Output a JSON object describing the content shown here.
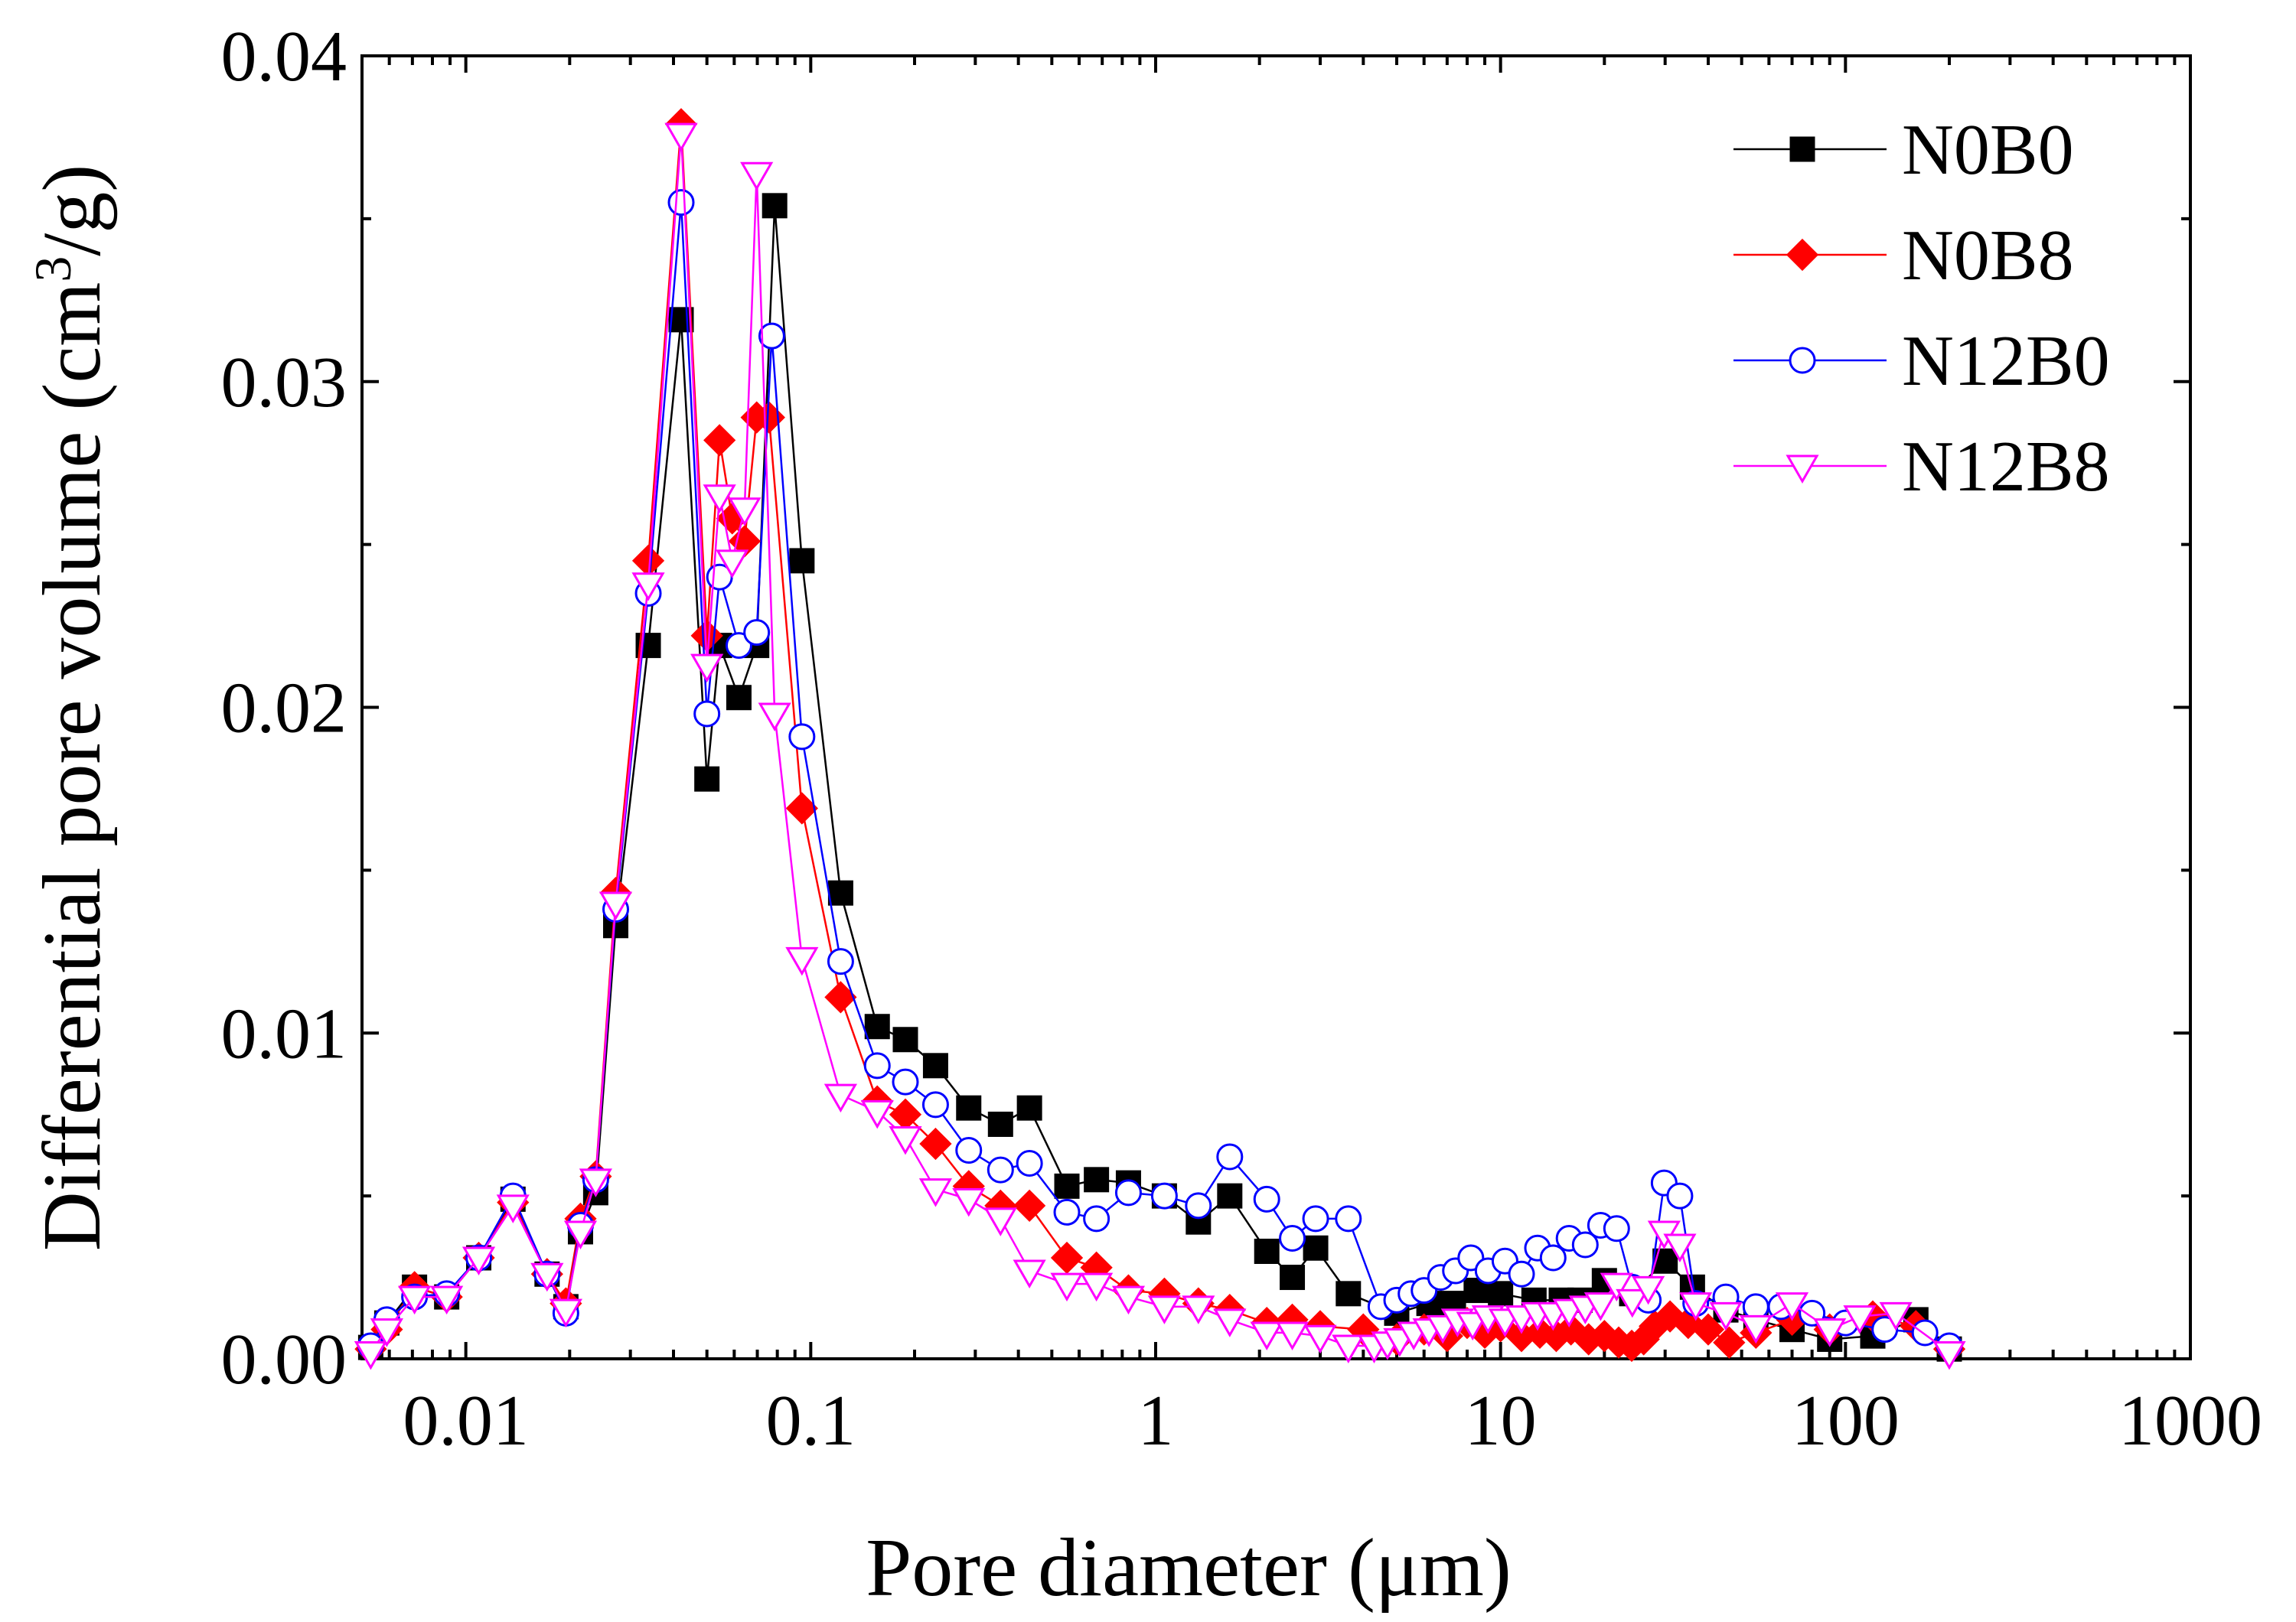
{
  "chart_data": {
    "type": "line",
    "title": "",
    "xlabel": "Pore diameter  (μm)",
    "ylabel_main": "Differential pore volume  (cm",
    "ylabel_sup": "3",
    "ylabel_tail": "/g)",
    "xscale": "log",
    "xlim": [
      0.005,
      1000
    ],
    "ylim": [
      0,
      0.04
    ],
    "x_ticks": [
      0.01,
      0.1,
      1,
      10,
      100,
      1000
    ],
    "x_tick_labels": [
      "0.01",
      "0.1",
      "1",
      "10",
      "100",
      "1000"
    ],
    "y_ticks": [
      0,
      0.01,
      0.02,
      0.03,
      0.04
    ],
    "y_tick_labels": [
      "0.00",
      "0.01",
      "0.02",
      "0.03",
      "0.04"
    ],
    "legend_position": "top-right",
    "series": [
      {
        "name": "N0B0",
        "color": "#000000",
        "marker": "square",
        "filled": true,
        "x": [
          0.0053,
          0.0059,
          0.0071,
          0.0088,
          0.0109,
          0.0137,
          0.0172,
          0.0195,
          0.0215,
          0.0238,
          0.0272,
          0.0338,
          0.0421,
          0.05,
          0.0544,
          0.0619,
          0.0697,
          0.0786,
          0.0943,
          0.1221,
          0.1559,
          0.1881,
          0.2301,
          0.2871,
          0.355,
          0.4307,
          0.5529,
          0.6735,
          0.8339,
          1.06,
          1.33,
          1.64,
          2.1,
          2.49,
          2.91,
          3.62,
          5,
          6.2,
          7.3,
          8.5,
          10,
          12.5,
          15,
          17,
          20,
          24,
          30,
          36,
          45,
          55,
          70,
          90,
          120,
          160,
          200
        ],
        "values": [
          0.00035,
          0.0011,
          0.0022,
          0.0019,
          0.0031,
          0.0049,
          0.0026,
          0.0016,
          0.0039,
          0.0051,
          0.0133,
          0.0219,
          0.0319,
          0.0178,
          0.0219,
          0.0203,
          0.0219,
          0.0354,
          0.0245,
          0.0143,
          0.0102,
          0.0098,
          0.009,
          0.0077,
          0.0072,
          0.0077,
          0.0053,
          0.0055,
          0.0054,
          0.005,
          0.0042,
          0.005,
          0.0033,
          0.0025,
          0.0034,
          0.002,
          0.0014,
          0.0017,
          0.0017,
          0.0021,
          0.002,
          0.0018,
          0.0018,
          0.0018,
          0.0024,
          0.002,
          0.003,
          0.0022,
          0.0015,
          0.0012,
          0.0009,
          0.0006,
          0.0007,
          0.0012,
          0.0003
        ]
      },
      {
        "name": "N0B8",
        "color": "#ff0000",
        "marker": "diamond",
        "filled": true,
        "x": [
          0.0053,
          0.0059,
          0.0071,
          0.0088,
          0.0109,
          0.0137,
          0.0172,
          0.0195,
          0.0215,
          0.0238,
          0.0272,
          0.0338,
          0.0421,
          0.05,
          0.0544,
          0.0592,
          0.0643,
          0.0697,
          0.0757,
          0.0943,
          0.1221,
          0.1559,
          0.1881,
          0.2301,
          0.2871,
          0.355,
          0.4307,
          0.5529,
          0.6735,
          0.8339,
          1.06,
          1.33,
          1.64,
          2.1,
          2.49,
          3.0,
          4.0,
          5.0,
          6.0,
          7.0,
          8.0,
          9.0,
          10,
          11.5,
          13,
          14.5,
          16,
          18,
          20,
          22,
          24,
          26,
          28,
          31,
          35,
          40,
          46,
          55,
          70,
          90,
          120,
          160,
          200
        ],
        "values": [
          0.0003,
          0.0009,
          0.0022,
          0.0019,
          0.0031,
          0.0048,
          0.0026,
          0.0017,
          0.0043,
          0.0056,
          0.0143,
          0.0245,
          0.0379,
          0.0222,
          0.0282,
          0.0258,
          0.0251,
          0.0289,
          0.0289,
          0.0169,
          0.0111,
          0.0079,
          0.0075,
          0.0066,
          0.0053,
          0.0047,
          0.0047,
          0.0031,
          0.0028,
          0.0021,
          0.002,
          0.0017,
          0.0015,
          0.0011,
          0.0012,
          0.001,
          0.0009,
          0.0006,
          0.0009,
          0.0007,
          0.0011,
          0.0008,
          0.001,
          0.0007,
          0.0008,
          0.0007,
          0.0009,
          0.0006,
          0.0007,
          0.0005,
          0.0004,
          0.0006,
          0.001,
          0.0013,
          0.0011,
          0.0009,
          0.0005,
          0.0008,
          0.0012,
          0.0009,
          0.0013,
          0.001,
          0.0003
        ]
      },
      {
        "name": "N12B0",
        "color": "#0000ff",
        "marker": "circle",
        "filled": false,
        "x": [
          0.0053,
          0.0059,
          0.0071,
          0.0088,
          0.0109,
          0.0137,
          0.0172,
          0.0195,
          0.0215,
          0.0238,
          0.0272,
          0.0338,
          0.0421,
          0.05,
          0.0544,
          0.0619,
          0.0697,
          0.0771,
          0.0943,
          0.1221,
          0.1559,
          0.1881,
          0.2301,
          0.2871,
          0.355,
          0.4307,
          0.5529,
          0.6735,
          0.8339,
          1.06,
          1.33,
          1.64,
          2.1,
          2.49,
          2.91,
          3.62,
          4.5,
          5.0,
          5.5,
          6.0,
          6.7,
          7.4,
          8.2,
          9.2,
          10.3,
          11.5,
          12.8,
          14.2,
          15.8,
          17.6,
          19.5,
          21.7,
          24.1,
          26.8,
          29.8,
          33.1,
          36.8,
          45,
          55,
          65,
          80,
          100,
          130,
          170,
          200
        ],
        "values": [
          0.0004,
          0.0012,
          0.0019,
          0.002,
          0.0031,
          0.005,
          0.0026,
          0.0014,
          0.0041,
          0.0055,
          0.0138,
          0.0235,
          0.0355,
          0.0198,
          0.024,
          0.0219,
          0.0223,
          0.0314,
          0.0191,
          0.0122,
          0.009,
          0.0085,
          0.0078,
          0.0064,
          0.0058,
          0.006,
          0.0045,
          0.0043,
          0.0051,
          0.005,
          0.0047,
          0.0062,
          0.0049,
          0.0037,
          0.0043,
          0.0043,
          0.0016,
          0.0018,
          0.002,
          0.0021,
          0.0025,
          0.0027,
          0.0031,
          0.0027,
          0.003,
          0.0026,
          0.0034,
          0.0031,
          0.0037,
          0.0035,
          0.0041,
          0.004,
          0.0022,
          0.0018,
          0.0054,
          0.005,
          0.0017,
          0.0019,
          0.0016,
          0.0016,
          0.0014,
          0.0011,
          0.0009,
          0.0008,
          0.0004
        ]
      },
      {
        "name": "N12B8",
        "color": "#ff00ff",
        "marker": "triangle-down",
        "filled": false,
        "x": [
          0.0053,
          0.0059,
          0.0071,
          0.0088,
          0.0109,
          0.0137,
          0.0172,
          0.0195,
          0.0215,
          0.0238,
          0.0272,
          0.0338,
          0.0421,
          0.05,
          0.0544,
          0.0592,
          0.0643,
          0.0697,
          0.0786,
          0.0943,
          0.1221,
          0.1559,
          0.1881,
          0.2301,
          0.2871,
          0.355,
          0.4307,
          0.5529,
          0.6735,
          0.8339,
          1.06,
          1.33,
          1.64,
          2.1,
          2.49,
          3.0,
          3.62,
          4.3,
          4.7,
          5.1,
          5.6,
          6.2,
          6.8,
          7.5,
          8.3,
          9.2,
          10.3,
          11.5,
          12.8,
          14.2,
          15.8,
          17.6,
          19.5,
          21.7,
          24.1,
          26.8,
          29.8,
          33.1,
          36.8,
          45,
          55,
          70,
          90,
          110,
          140,
          200
        ],
        "values": [
          0.0002,
          0.0009,
          0.0019,
          0.0019,
          0.0031,
          0.0047,
          0.0026,
          0.0015,
          0.0039,
          0.0055,
          0.014,
          0.0238,
          0.0376,
          0.0213,
          0.0265,
          0.0245,
          0.0261,
          0.0364,
          0.0198,
          0.0123,
          0.0081,
          0.0076,
          0.0068,
          0.0052,
          0.0049,
          0.0043,
          0.0027,
          0.0023,
          0.0023,
          0.0019,
          0.0016,
          0.0016,
          0.0012,
          0.0008,
          0.0008,
          0.0007,
          0.0004,
          0.0004,
          0.0005,
          0.0006,
          0.0008,
          0.0009,
          0.001,
          0.0012,
          0.0011,
          0.0013,
          0.0012,
          0.0013,
          0.0014,
          0.0014,
          0.0015,
          0.0016,
          0.0017,
          0.0023,
          0.0018,
          0.0022,
          0.0039,
          0.0035,
          0.0017,
          0.0014,
          0.001,
          0.0017,
          0.0009,
          0.0013,
          0.0014,
          0.0002
        ]
      }
    ]
  }
}
